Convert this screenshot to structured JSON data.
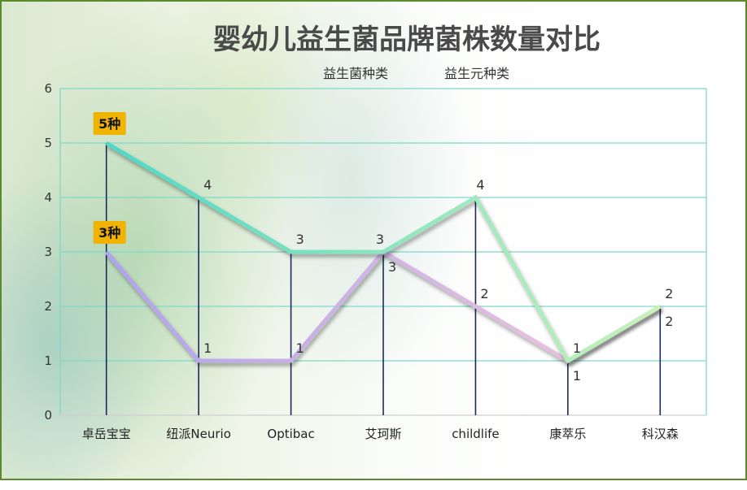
{
  "chart_data": {
    "type": "line",
    "title": "婴幼儿益生菌品牌菌株数量对比",
    "categories": [
      "卓岳宝宝",
      "纽派Neurio",
      "Optibac",
      "艾珂斯",
      "childlife",
      "康萃乐",
      "科汉森"
    ],
    "series": [
      {
        "name": "益生菌种类",
        "values": [
          5,
          4,
          3,
          3,
          4,
          1,
          2
        ],
        "color_start": "#4fd8c8",
        "color_end": "#c8f2b8"
      },
      {
        "name": "益生元种类",
        "values": [
          3,
          1,
          1,
          3,
          2,
          1,
          2
        ],
        "color_start": "#b0a4ee",
        "color_end": "#f2c6da"
      }
    ],
    "ylim": [
      0,
      6
    ],
    "yticks": [
      0,
      1,
      2,
      3,
      4,
      5,
      6
    ],
    "callouts": [
      {
        "series": 0,
        "index": 0,
        "text": "5种",
        "color": "#f0b400"
      },
      {
        "series": 1,
        "index": 0,
        "text": "3种",
        "color": "#f0b400"
      }
    ],
    "grid": true,
    "legend": "top",
    "gridline_color": "#7fd8cc",
    "dropline_color": "#1c2a5c"
  }
}
